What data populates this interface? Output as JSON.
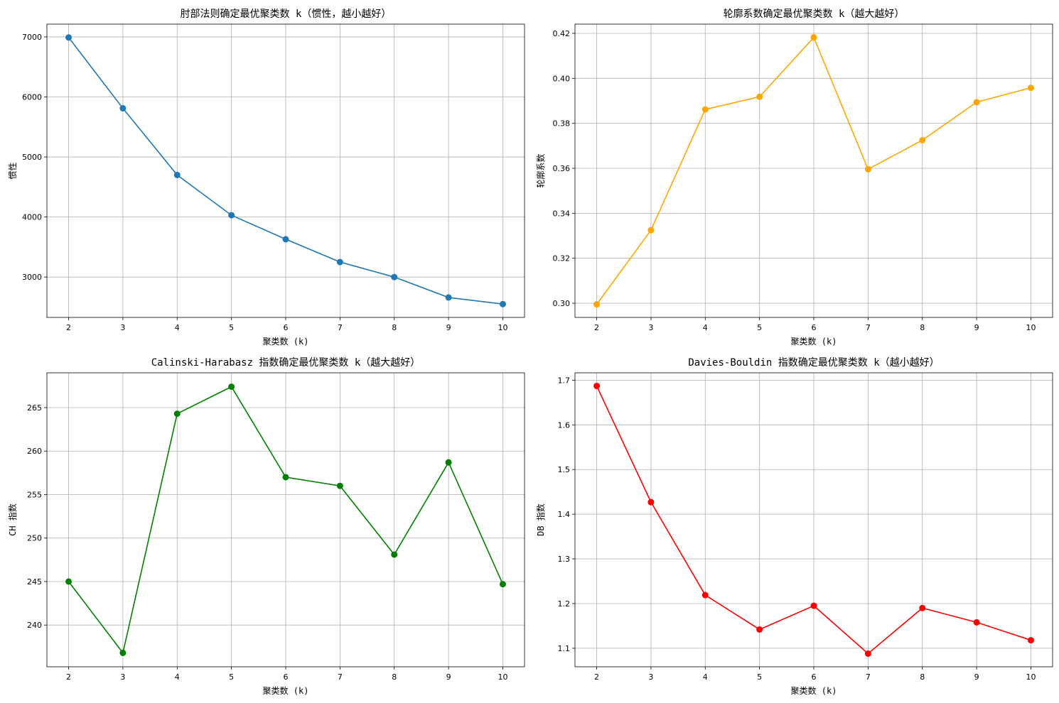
{
  "chart_data": [
    {
      "type": "line",
      "title": "肘部法则确定最优聚类数 k（惯性，越小越好）",
      "xlabel": "聚类数 (k)",
      "ylabel": "惯性",
      "x": [
        2,
        3,
        4,
        5,
        6,
        7,
        8,
        9,
        10
      ],
      "series": [
        {
          "values": [
            6990,
            5810,
            4700,
            4030,
            3630,
            3250,
            3000,
            2660,
            2550
          ],
          "color": "#1f77b4",
          "marker": "circle"
        }
      ],
      "xlim": [
        1.6,
        10.4
      ],
      "ylim": [
        2328,
        7212
      ],
      "yticks": [
        3000,
        4000,
        5000,
        6000,
        7000
      ],
      "ytick_labels": [
        "3000",
        "4000",
        "5000",
        "6000",
        "7000"
      ],
      "xticks": [
        2,
        3,
        4,
        5,
        6,
        7,
        8,
        9,
        10
      ],
      "grid": true
    },
    {
      "type": "line",
      "title": "轮廓系数确定最优聚类数 k（越大越好）",
      "xlabel": "聚类数 (k)",
      "ylabel": "轮廓系数",
      "x": [
        2,
        3,
        4,
        5,
        6,
        7,
        8,
        9,
        10
      ],
      "series": [
        {
          "values": [
            0.2995,
            0.3325,
            0.3862,
            0.3918,
            0.4182,
            0.3596,
            0.3725,
            0.3894,
            0.3958
          ],
          "color": "#ffa500",
          "marker": "circle"
        }
      ],
      "xlim": [
        1.6,
        10.4
      ],
      "ylim": [
        0.2937,
        0.4241
      ],
      "yticks": [
        0.3,
        0.32,
        0.34,
        0.36,
        0.38,
        0.4,
        0.42
      ],
      "ytick_labels": [
        "0.30",
        "0.32",
        "0.34",
        "0.36",
        "0.38",
        "0.40",
        "0.42"
      ],
      "xticks": [
        2,
        3,
        4,
        5,
        6,
        7,
        8,
        9,
        10
      ],
      "grid": true
    },
    {
      "type": "line",
      "title": "Calinski-Harabasz 指数确定最优聚类数 k（越大越好）",
      "xlabel": "聚类数 (k)",
      "ylabel": "CH 指数",
      "x": [
        2,
        3,
        4,
        5,
        6,
        7,
        8,
        9,
        10
      ],
      "series": [
        {
          "values": [
            245.0,
            236.8,
            264.3,
            267.4,
            257.0,
            256.0,
            248.1,
            258.7,
            244.7
          ],
          "color": "#008000",
          "marker": "circle"
        }
      ],
      "xlim": [
        1.6,
        10.4
      ],
      "ylim": [
        235.2,
        269.0
      ],
      "yticks": [
        240,
        245,
        250,
        255,
        260,
        265
      ],
      "ytick_labels": [
        "240",
        "245",
        "250",
        "255",
        "260",
        "265"
      ],
      "xticks": [
        2,
        3,
        4,
        5,
        6,
        7,
        8,
        9,
        10
      ],
      "grid": true
    },
    {
      "type": "line",
      "title": "Davies-Bouldin 指数确定最优聚类数 k（越小越好）",
      "xlabel": "聚类数 (k)",
      "ylabel": "DB 指数",
      "x": [
        2,
        3,
        4,
        5,
        6,
        7,
        8,
        9,
        10
      ],
      "series": [
        {
          "values": [
            1.687,
            1.427,
            1.219,
            1.142,
            1.195,
            1.088,
            1.19,
            1.158,
            1.118
          ],
          "color": "#ff0000",
          "marker": "circle"
        }
      ],
      "xlim": [
        1.6,
        10.4
      ],
      "ylim": [
        1.0585,
        1.7165
      ],
      "yticks": [
        1.1,
        1.2,
        1.3,
        1.4,
        1.5,
        1.6,
        1.7
      ],
      "ytick_labels": [
        "1.1",
        "1.2",
        "1.3",
        "1.4",
        "1.5",
        "1.6",
        "1.7"
      ],
      "xticks": [
        2,
        3,
        4,
        5,
        6,
        7,
        8,
        9,
        10
      ],
      "grid": true
    }
  ]
}
